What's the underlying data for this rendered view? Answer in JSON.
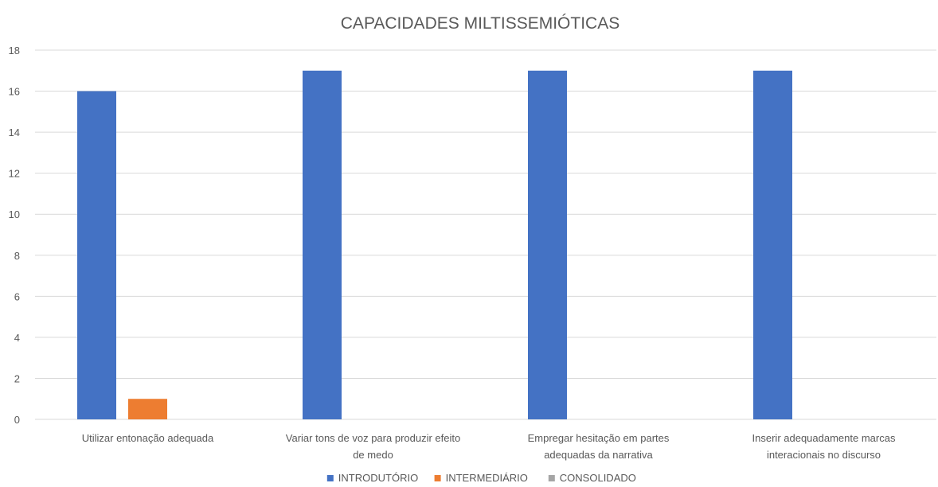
{
  "chart_data": {
    "type": "bar",
    "title": "CAPACIDADES MILTISSEMIÓTICAS",
    "xlabel": "",
    "ylabel": "",
    "ylim": [
      0,
      18
    ],
    "yticks": [
      0,
      2,
      4,
      6,
      8,
      10,
      12,
      14,
      16,
      18
    ],
    "grid": true,
    "legend_position": "bottom",
    "categories": [
      [
        "Utilizar entonação adequada"
      ],
      [
        "Variar tons de voz para produzir efeito",
        "de medo"
      ],
      [
        "Empregar hesitação em partes",
        "adequadas da narrativa"
      ],
      [
        "Inserir adequadamente marcas",
        "interacionais no discurso"
      ]
    ],
    "series": [
      {
        "name": "INTRODUTÓRIO",
        "color": "#4472C4",
        "values": [
          16,
          17,
          17,
          17
        ]
      },
      {
        "name": "INTERMEDIÁRIO",
        "color": "#ED7D31",
        "values": [
          1,
          0,
          0,
          0
        ]
      },
      {
        "name": "CONSOLIDADO",
        "color": "#A5A5A5",
        "values": [
          0,
          0,
          0,
          0
        ]
      }
    ]
  }
}
